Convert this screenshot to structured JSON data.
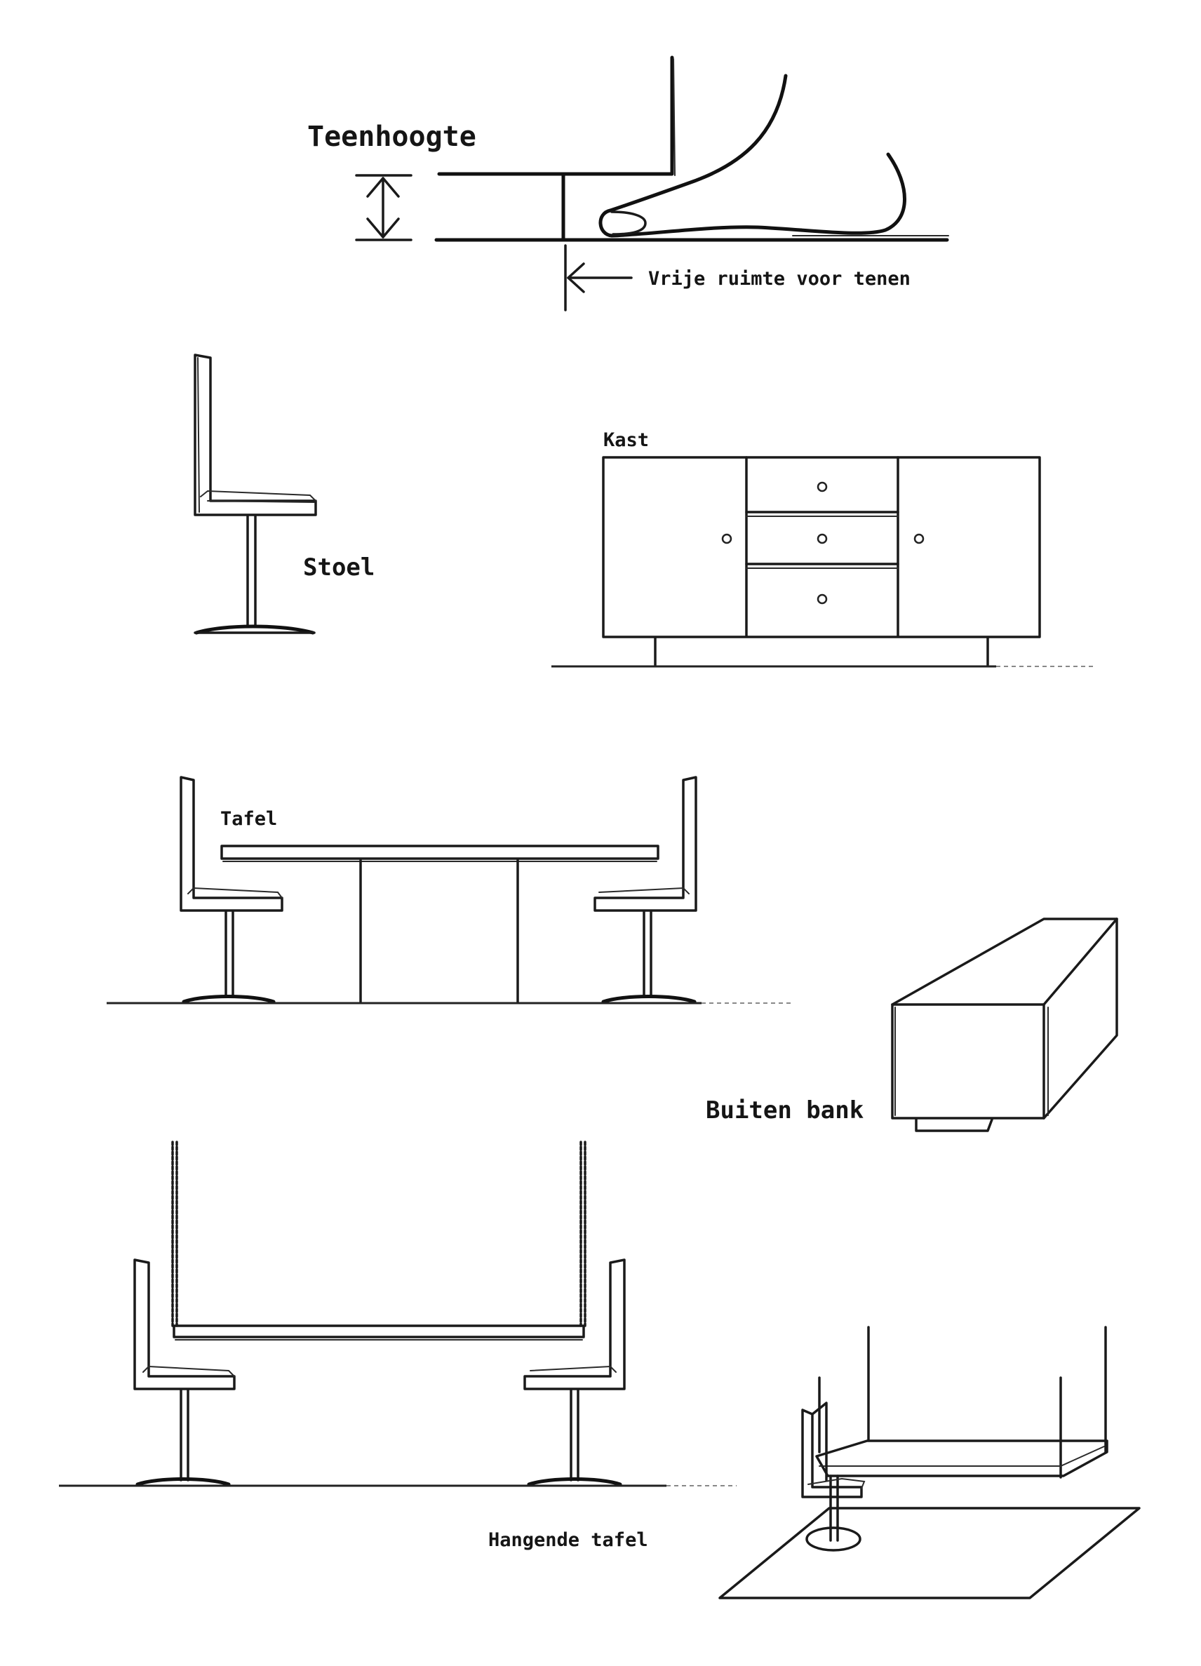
{
  "labels": {
    "toe_height": "Teenhoogte",
    "toe_space": "Vrije ruimte voor tenen",
    "chair": "Stoel",
    "cabinet": "Kast",
    "table": "Tafel",
    "outdoor_bench": "Buiten bank",
    "hanging_table": "Hangende tafel"
  },
  "colors": {
    "ink": "#1c1c1c",
    "background": "#ffffff"
  }
}
